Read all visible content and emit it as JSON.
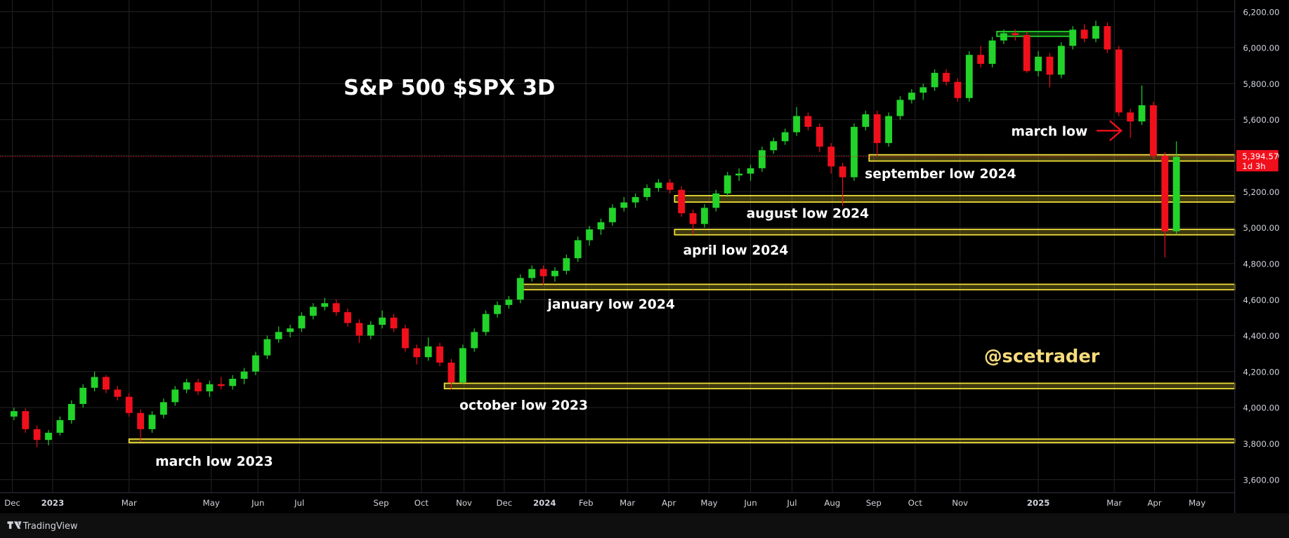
{
  "chart_data": {
    "type": "candlestick",
    "title": "S&P 500 $SPX 3D",
    "watermark": "@scetrader",
    "footer": "TradingView",
    "annotation": {
      "text": "march low"
    },
    "grid": true,
    "up_color": "#22d32a",
    "down_color": "#f0101c",
    "ylim": [
      3527,
      6264
    ],
    "yticks": [
      {
        "value": 3600,
        "label": "3,600.00"
      },
      {
        "value": 3800,
        "label": "3,800.00"
      },
      {
        "value": 4000,
        "label": "4,000.00"
      },
      {
        "value": 4200,
        "label": "4,200.00"
      },
      {
        "value": 4400,
        "label": "4,400.00"
      },
      {
        "value": 4600,
        "label": "4,600.00"
      },
      {
        "value": 4800,
        "label": "4,800.00"
      },
      {
        "value": 5000,
        "label": "5,000.00"
      },
      {
        "value": 5200,
        "label": "5,200.00"
      },
      {
        "value": 5400,
        "label": "5,400.00"
      },
      {
        "value": 5600,
        "label": "5,600.00"
      },
      {
        "value": 5800,
        "label": "5,800.00"
      },
      {
        "value": 6000,
        "label": "6,000.00"
      },
      {
        "value": 6200,
        "label": "6,200.00"
      }
    ],
    "xlim": [
      -0.5,
      106.07
    ],
    "xticks": [
      {
        "value": -0.14,
        "label": "Dec"
      },
      {
        "value": 3.36,
        "label": "2023"
      },
      {
        "value": 10,
        "label": "Mar"
      },
      {
        "value": 17.14,
        "label": "May"
      },
      {
        "value": 21.2,
        "label": "Jun"
      },
      {
        "value": 24.8,
        "label": "Jul"
      },
      {
        "value": 31.9,
        "label": "Sep"
      },
      {
        "value": 35.4,
        "label": "Oct"
      },
      {
        "value": 39.1,
        "label": "Nov"
      },
      {
        "value": 42.6,
        "label": "Dec"
      },
      {
        "value": 46.1,
        "label": "2024"
      },
      {
        "value": 49.7,
        "label": "Feb"
      },
      {
        "value": 53.3,
        "label": "Mar"
      },
      {
        "value": 56.9,
        "label": "Apr"
      },
      {
        "value": 60.4,
        "label": "May"
      },
      {
        "value": 64,
        "label": "Jun"
      },
      {
        "value": 67.6,
        "label": "Jul"
      },
      {
        "value": 71.1,
        "label": "Aug"
      },
      {
        "value": 74.7,
        "label": "Sep"
      },
      {
        "value": 78.3,
        "label": "Oct"
      },
      {
        "value": 82.2,
        "label": "Nov"
      },
      {
        "value": 89,
        "label": "2025"
      },
      {
        "value": 95.6,
        "label": "Mar"
      },
      {
        "value": 99.1,
        "label": "Apr"
      },
      {
        "value": 102.8,
        "label": "May"
      }
    ],
    "last_price": {
      "value": 5394.57,
      "label": "5,394.57"
    },
    "countdown": "1d 3h",
    "zones": [
      {
        "label": "march low 2023",
        "low": 3805,
        "high": 3825,
        "start": 10,
        "color": "#f2e03a"
      },
      {
        "label": "october low 2023",
        "low": 4105,
        "high": 4135,
        "start": 37.4,
        "color": "#f2e03a"
      },
      {
        "label": "january low 2024",
        "low": 4655,
        "high": 4685,
        "start": 44.1,
        "color": "#f2e03a"
      },
      {
        "label": "april low 2024",
        "low": 4960,
        "high": 4990,
        "start": 57.4,
        "color": "#f2e03a"
      },
      {
        "label": "august low 2024",
        "low": 5142,
        "high": 5178,
        "start": 57.4,
        "color": "#f2e03a"
      },
      {
        "label": "september low 2024",
        "low": 5370,
        "high": 5405,
        "start": 74.3,
        "color": "#f2e03a"
      },
      {
        "low": 6063,
        "high": 6090,
        "start": 85.4,
        "end": 92,
        "color": "#22d32a"
      }
    ],
    "ohlc": [
      [
        3950,
        4000,
        3930,
        3980
      ],
      [
        3980,
        3995,
        3860,
        3880
      ],
      [
        3880,
        3900,
        3780,
        3820
      ],
      [
        3820,
        3875,
        3790,
        3860
      ],
      [
        3860,
        3950,
        3845,
        3930
      ],
      [
        3930,
        4040,
        3910,
        4020
      ],
      [
        4020,
        4130,
        4000,
        4110
      ],
      [
        4110,
        4200,
        4090,
        4170
      ],
      [
        4170,
        4180,
        4080,
        4100
      ],
      [
        4100,
        4120,
        4040,
        4060
      ],
      [
        4060,
        4080,
        3950,
        3970
      ],
      [
        3970,
        3990,
        3810,
        3880
      ],
      [
        3880,
        3980,
        3860,
        3960
      ],
      [
        3960,
        4050,
        3940,
        4030
      ],
      [
        4030,
        4120,
        4010,
        4100
      ],
      [
        4100,
        4160,
        4080,
        4140
      ],
      [
        4140,
        4160,
        4070,
        4090
      ],
      [
        4090,
        4150,
        4060,
        4130
      ],
      [
        4130,
        4170,
        4100,
        4120
      ],
      [
        4120,
        4180,
        4100,
        4160
      ],
      [
        4160,
        4220,
        4130,
        4200
      ],
      [
        4200,
        4310,
        4180,
        4290
      ],
      [
        4290,
        4400,
        4270,
        4380
      ],
      [
        4380,
        4450,
        4360,
        4420
      ],
      [
        4420,
        4460,
        4390,
        4440
      ],
      [
        4440,
        4530,
        4420,
        4510
      ],
      [
        4510,
        4580,
        4490,
        4560
      ],
      [
        4560,
        4610,
        4540,
        4580
      ],
      [
        4580,
        4600,
        4510,
        4530
      ],
      [
        4530,
        4550,
        4450,
        4470
      ],
      [
        4470,
        4490,
        4360,
        4400
      ],
      [
        4400,
        4480,
        4380,
        4460
      ],
      [
        4460,
        4540,
        4440,
        4500
      ],
      [
        4500,
        4520,
        4420,
        4440
      ],
      [
        4440,
        4460,
        4310,
        4330
      ],
      [
        4330,
        4350,
        4240,
        4280
      ],
      [
        4280,
        4390,
        4260,
        4340
      ],
      [
        4340,
        4360,
        4230,
        4250
      ],
      [
        4250,
        4270,
        4100,
        4140
      ],
      [
        4140,
        4350,
        4130,
        4330
      ],
      [
        4330,
        4440,
        4310,
        4420
      ],
      [
        4420,
        4540,
        4400,
        4520
      ],
      [
        4520,
        4590,
        4500,
        4570
      ],
      [
        4570,
        4620,
        4550,
        4600
      ],
      [
        4600,
        4740,
        4580,
        4720
      ],
      [
        4720,
        4790,
        4700,
        4770
      ],
      [
        4770,
        4790,
        4680,
        4730
      ],
      [
        4730,
        4780,
        4700,
        4760
      ],
      [
        4760,
        4850,
        4740,
        4830
      ],
      [
        4830,
        4950,
        4810,
        4930
      ],
      [
        4930,
        5010,
        4900,
        4990
      ],
      [
        4990,
        5050,
        4960,
        5030
      ],
      [
        5030,
        5130,
        5010,
        5110
      ],
      [
        5110,
        5170,
        5090,
        5140
      ],
      [
        5140,
        5190,
        5110,
        5170
      ],
      [
        5170,
        5240,
        5150,
        5220
      ],
      [
        5220,
        5270,
        5200,
        5250
      ],
      [
        5250,
        5270,
        5190,
        5210
      ],
      [
        5210,
        5230,
        5060,
        5080
      ],
      [
        5080,
        5100,
        4960,
        5020
      ],
      [
        5020,
        5130,
        5000,
        5110
      ],
      [
        5110,
        5210,
        5090,
        5190
      ],
      [
        5190,
        5310,
        5170,
        5290
      ],
      [
        5290,
        5330,
        5260,
        5300
      ],
      [
        5300,
        5350,
        5260,
        5330
      ],
      [
        5330,
        5450,
        5310,
        5430
      ],
      [
        5430,
        5500,
        5410,
        5480
      ],
      [
        5480,
        5550,
        5460,
        5530
      ],
      [
        5530,
        5670,
        5510,
        5620
      ],
      [
        5620,
        5640,
        5540,
        5560
      ],
      [
        5560,
        5580,
        5420,
        5450
      ],
      [
        5450,
        5470,
        5300,
        5340
      ],
      [
        5340,
        5360,
        5120,
        5280
      ],
      [
        5280,
        5580,
        5260,
        5560
      ],
      [
        5560,
        5650,
        5540,
        5630
      ],
      [
        5630,
        5650,
        5400,
        5470
      ],
      [
        5470,
        5640,
        5450,
        5620
      ],
      [
        5620,
        5730,
        5600,
        5710
      ],
      [
        5710,
        5770,
        5690,
        5750
      ],
      [
        5750,
        5800,
        5710,
        5780
      ],
      [
        5780,
        5880,
        5760,
        5860
      ],
      [
        5860,
        5880,
        5790,
        5810
      ],
      [
        5810,
        5830,
        5700,
        5720
      ],
      [
        5720,
        5980,
        5700,
        5960
      ],
      [
        5960,
        6010,
        5890,
        5910
      ],
      [
        5910,
        6060,
        5890,
        6040
      ],
      [
        6040,
        6100,
        6020,
        6080
      ],
      [
        6080,
        6100,
        6040,
        6070
      ],
      [
        6070,
        6090,
        5860,
        5870
      ],
      [
        5870,
        5980,
        5840,
        5950
      ],
      [
        5950,
        5970,
        5780,
        5850
      ],
      [
        5850,
        6030,
        5830,
        6010
      ],
      [
        6010,
        6120,
        5990,
        6100
      ],
      [
        6100,
        6130,
        6030,
        6050
      ],
      [
        6050,
        6150,
        6030,
        6120
      ],
      [
        6120,
        6140,
        5970,
        5990
      ],
      [
        5990,
        6010,
        5620,
        5640
      ],
      [
        5640,
        5660,
        5500,
        5590
      ],
      [
        5590,
        5790,
        5570,
        5680
      ],
      [
        5680,
        5700,
        5380,
        5400
      ],
      [
        5400,
        5420,
        4835,
        4980
      ],
      [
        4980,
        5480,
        4960,
        5394.57
      ]
    ]
  }
}
